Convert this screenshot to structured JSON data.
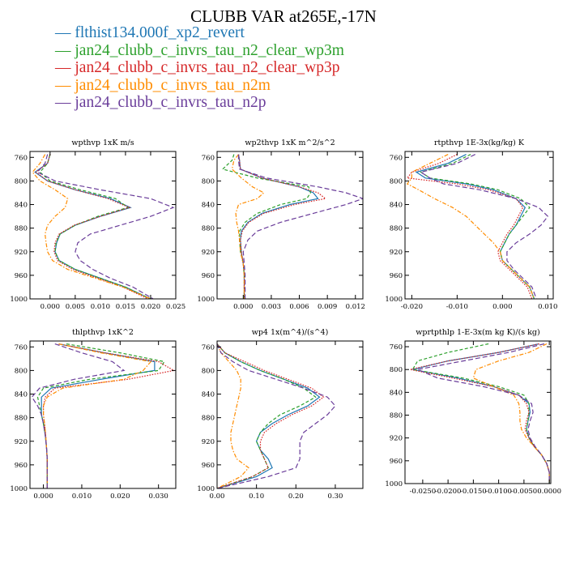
{
  "title": "CLUBB VAR at265E,-17N",
  "legend": [
    {
      "label": "flthist134.000f_xp2_revert",
      "color": "#1f77b4",
      "dash": "solid"
    },
    {
      "label": "jan24_clubb_c_invrs_tau_n2_clear_wp3m",
      "color": "#2ca02c",
      "dash": "dashed"
    },
    {
      "label": "jan24_clubb_c_invrs_tau_n2_clear_wp3p",
      "color": "#d62728",
      "dash": "dotted"
    },
    {
      "label": "jan24_clubb_c_invrs_tau_n2m",
      "color": "#ff8c00",
      "dash": "dashdot"
    },
    {
      "label": "jan24_clubb_c_invrs_tau_n2p",
      "color": "#6a3d9a",
      "dash": "longdash"
    }
  ],
  "chart_data": [
    {
      "type": "line",
      "title": "wpthvp  1xK m/s",
      "xlim": [
        -0.004,
        0.025
      ],
      "ylim": [
        1000,
        750
      ],
      "xticks": [
        0.0,
        0.005,
        0.01,
        0.015,
        0.02,
        0.025
      ],
      "xtick_labels": [
        "0.000",
        "0.005",
        "0.010",
        "0.015",
        "0.020",
        "0.025"
      ],
      "yticks": [
        760,
        800,
        840,
        880,
        920,
        960,
        1000
      ],
      "y": [
        755,
        770,
        785,
        800,
        815,
        830,
        845,
        860,
        875,
        890,
        905,
        920,
        935,
        950,
        965,
        980,
        1000
      ],
      "series": [
        {
          "values": [
            0.0,
            -0.0005,
            -0.003,
            -0.0005,
            0.005,
            0.012,
            0.016,
            0.01,
            0.005,
            0.002,
            0.0013,
            0.001,
            0.0018,
            0.005,
            0.01,
            0.015,
            0.02
          ]
        },
        {
          "values": [
            0.0,
            -0.0005,
            -0.002,
            0.0,
            0.006,
            0.013,
            0.0155,
            0.0095,
            0.005,
            0.002,
            0.0012,
            0.001,
            0.0018,
            0.005,
            0.01,
            0.015,
            0.02
          ]
        },
        {
          "values": [
            0.0,
            -0.0005,
            -0.0028,
            -0.0005,
            0.005,
            0.0115,
            0.0158,
            0.01,
            0.0048,
            0.0018,
            0.001,
            0.0008,
            0.0015,
            0.0045,
            0.0095,
            0.0145,
            0.0195
          ]
        },
        {
          "values": [
            -0.001,
            -0.002,
            -0.0035,
            -0.002,
            0.001,
            0.0035,
            0.003,
            0.001,
            -0.0005,
            -0.001,
            -0.0008,
            -0.0005,
            0.0005,
            0.0035,
            0.009,
            0.0145,
            0.02
          ]
        },
        {
          "values": [
            -0.0005,
            -0.001,
            -0.0025,
            0.001,
            0.01,
            0.02,
            0.0245,
            0.02,
            0.014,
            0.008,
            0.0055,
            0.005,
            0.006,
            0.0085,
            0.012,
            0.0165,
            0.0205
          ]
        }
      ]
    },
    {
      "type": "line",
      "title": "wp2thvp  1xK m^2/s^2",
      "xlim": [
        -0.0028,
        0.0128
      ],
      "ylim": [
        1000,
        750
      ],
      "xticks": [
        0.0,
        0.003,
        0.006,
        0.009,
        0.012
      ],
      "xtick_labels": [
        "0.000",
        "0.003",
        "0.006",
        "0.009",
        "0.012"
      ],
      "yticks": [
        760,
        800,
        840,
        880,
        920,
        960,
        1000
      ],
      "y": [
        755,
        765,
        780,
        795,
        810,
        820,
        830,
        840,
        855,
        870,
        885,
        900,
        920,
        940,
        960,
        980,
        1000
      ],
      "series": [
        {
          "values": [
            -0.0005,
            -0.0004,
            -0.0003,
            0.002,
            0.006,
            0.0075,
            0.008,
            0.005,
            0.002,
            0.0005,
            -0.0002,
            -0.0003,
            -0.0002,
            0.0,
            0.0001,
            0.0001,
            0.0001
          ]
        },
        {
          "values": [
            -0.001,
            -0.0012,
            -0.0022,
            0.0015,
            0.007,
            0.0072,
            0.0068,
            0.004,
            0.0015,
            0.0002,
            -0.0004,
            -0.0004,
            -0.0003,
            0.0,
            0.0001,
            0.0001,
            0.0001
          ]
        },
        {
          "values": [
            -0.0005,
            -0.0004,
            -0.0003,
            0.002,
            0.006,
            0.008,
            0.0088,
            0.0055,
            0.0022,
            0.0006,
            -0.0001,
            -0.0003,
            -0.0002,
            0.0,
            0.0001,
            0.0001,
            0.0001
          ]
        },
        {
          "values": [
            -0.0005,
            -0.001,
            -0.0012,
            -0.0002,
            0.001,
            0.0022,
            0.0015,
            -0.0005,
            -0.0008,
            -0.0007,
            -0.0005,
            -0.0004,
            -0.0003,
            0.0,
            0.0001,
            0.0001,
            0.0001
          ]
        },
        {
          "values": [
            -0.0005,
            -0.0005,
            -0.0004,
            0.0025,
            0.008,
            0.011,
            0.0128,
            0.011,
            0.0075,
            0.004,
            0.0015,
            0.0005,
            0.0,
            0.0001,
            0.0002,
            0.0002,
            0.0002
          ]
        }
      ]
    },
    {
      "type": "line",
      "title": "rtpthvp  1E-3x(kg/kg) K",
      "xlim": [
        -0.0215,
        0.0112
      ],
      "ylim": [
        1000,
        750
      ],
      "xticks": [
        -0.02,
        -0.01,
        0.0,
        0.01
      ],
      "xtick_labels": [
        "-0.020",
        "-0.010",
        "0.000",
        "0.010"
      ],
      "yticks": [
        760,
        800,
        840,
        880,
        920,
        960,
        1000
      ],
      "y": [
        755,
        770,
        785,
        795,
        805,
        815,
        830,
        845,
        860,
        875,
        890,
        905,
        920,
        935,
        950,
        965,
        980,
        1000
      ],
      "series": [
        {
          "values": [
            -0.008,
            -0.012,
            -0.019,
            -0.017,
            -0.008,
            -0.002,
            0.003,
            0.005,
            0.004,
            0.003,
            0.0015,
            0.0005,
            -0.0005,
            0.0,
            0.002,
            0.004,
            0.006,
            0.007
          ]
        },
        {
          "values": [
            -0.007,
            -0.011,
            -0.018,
            -0.016,
            -0.007,
            -0.001,
            0.004,
            0.006,
            0.0045,
            0.003,
            0.0015,
            0.0005,
            -0.0005,
            0.0,
            0.002,
            0.004,
            0.006,
            0.007
          ]
        },
        {
          "values": [
            -0.01,
            -0.014,
            -0.02,
            -0.021,
            -0.01,
            -0.003,
            0.003,
            0.0045,
            0.0035,
            0.0025,
            0.001,
            0.0,
            -0.001,
            -0.0005,
            0.0015,
            0.0035,
            0.0055,
            0.0065
          ]
        },
        {
          "values": [
            -0.012,
            -0.016,
            -0.02,
            -0.02,
            -0.021,
            -0.0185,
            -0.015,
            -0.011,
            -0.008,
            -0.006,
            -0.004,
            -0.002,
            -0.0005,
            0.0,
            0.002,
            0.004,
            0.006,
            0.007
          ]
        },
        {
          "values": [
            -0.006,
            -0.01,
            -0.018,
            -0.016,
            -0.013,
            -0.005,
            0.003,
            0.008,
            0.01,
            0.0085,
            0.006,
            0.003,
            0.001,
            0.001,
            0.0025,
            0.0045,
            0.0065,
            0.0075
          ]
        }
      ]
    },
    {
      "type": "line",
      "title": "thlpthvp  1xK^2",
      "xlim": [
        -0.0035,
        0.0345
      ],
      "ylim": [
        1000,
        750
      ],
      "xticks": [
        0.0,
        0.01,
        0.02,
        0.03
      ],
      "xtick_labels": [
        "0.000",
        "0.010",
        "0.020",
        "0.030"
      ],
      "yticks": [
        760,
        800,
        840,
        880,
        920,
        960,
        1000
      ],
      "y": [
        755,
        770,
        785,
        800,
        815,
        830,
        845,
        860,
        875,
        890,
        910,
        930,
        950,
        970,
        1000
      ],
      "series": [
        {
          "values": [
            0.004,
            0.016,
            0.029,
            0.029,
            0.015,
            0.002,
            -0.0005,
            -0.0005,
            -0.0005,
            0.0,
            0.0005,
            0.0008,
            0.001,
            0.001,
            0.001
          ]
        },
        {
          "values": [
            0.006,
            0.02,
            0.0315,
            0.03,
            0.012,
            0.0,
            -0.0015,
            -0.001,
            -0.0005,
            0.0,
            0.0005,
            0.0008,
            0.001,
            0.001,
            0.001
          ]
        },
        {
          "values": [
            0.004,
            0.016,
            0.03,
            0.034,
            0.022,
            0.003,
            0.0005,
            0.0,
            0.0,
            0.0003,
            0.0006,
            0.0008,
            0.001,
            0.001,
            0.001
          ]
        },
        {
          "values": [
            0.004,
            0.015,
            0.028,
            0.026,
            0.021,
            0.005,
            0.001,
            0.0,
            0.0,
            0.0003,
            0.0006,
            0.0008,
            0.001,
            0.001,
            0.001
          ]
        },
        {
          "values": [
            0.003,
            0.01,
            0.018,
            0.021,
            0.008,
            -0.001,
            -0.003,
            -0.0015,
            -0.0005,
            0.0,
            0.0005,
            0.0008,
            0.001,
            0.001,
            0.001
          ]
        }
      ]
    },
    {
      "type": "line",
      "title": "wp4  1x(m^4)/(s^4)",
      "xlim": [
        0.0,
        0.37
      ],
      "ylim": [
        1000,
        750
      ],
      "xticks": [
        0.0,
        0.1,
        0.2,
        0.3
      ],
      "xtick_labels": [
        "0.00",
        "0.10",
        "0.20",
        "0.30"
      ],
      "yticks": [
        760,
        800,
        840,
        880,
        920,
        960,
        1000
      ],
      "y": [
        755,
        770,
        785,
        800,
        815,
        830,
        845,
        860,
        875,
        890,
        905,
        920,
        935,
        950,
        965,
        980,
        1000
      ],
      "series": [
        {
          "values": [
            0.0,
            0.02,
            0.06,
            0.11,
            0.17,
            0.23,
            0.26,
            0.23,
            0.18,
            0.14,
            0.11,
            0.1,
            0.11,
            0.13,
            0.14,
            0.1,
            0.0
          ]
        },
        {
          "values": [
            0.0,
            0.02,
            0.06,
            0.11,
            0.17,
            0.22,
            0.25,
            0.21,
            0.16,
            0.13,
            0.11,
            0.1,
            0.11,
            0.12,
            0.13,
            0.09,
            0.0
          ]
        },
        {
          "values": [
            0.0,
            0.02,
            0.07,
            0.12,
            0.18,
            0.24,
            0.27,
            0.24,
            0.19,
            0.15,
            0.12,
            0.11,
            0.11,
            0.12,
            0.13,
            0.09,
            0.0
          ]
        },
        {
          "values": [
            0.0,
            0.01,
            0.03,
            0.05,
            0.06,
            0.06,
            0.055,
            0.05,
            0.045,
            0.04,
            0.035,
            0.035,
            0.04,
            0.05,
            0.08,
            0.06,
            0.0
          ]
        },
        {
          "values": [
            0.0,
            0.01,
            0.04,
            0.08,
            0.15,
            0.22,
            0.28,
            0.3,
            0.28,
            0.25,
            0.22,
            0.21,
            0.21,
            0.21,
            0.2,
            0.13,
            0.0
          ]
        }
      ]
    },
    {
      "type": "line",
      "title": "wprtpthlp  1-E-3x(m kg K)/(s kg)",
      "xlim": [
        -0.0285,
        0.0003
      ],
      "ylim": [
        1000,
        750
      ],
      "xticks": [
        -0.025,
        -0.02,
        -0.015,
        -0.01,
        -0.005,
        0.0
      ],
      "xtick_labels": [
        "-0.0250",
        "-0.0200",
        "-0.0150",
        "-0.0100",
        "-0.0050",
        "0.0000"
      ],
      "yticks": [
        760,
        800,
        840,
        880,
        920,
        960,
        1000
      ],
      "y": [
        755,
        770,
        785,
        800,
        815,
        830,
        845,
        860,
        875,
        890,
        905,
        920,
        935,
        950,
        965,
        980,
        1000
      ],
      "series": [
        {
          "values": [
            -0.002,
            -0.01,
            -0.02,
            -0.027,
            -0.018,
            -0.011,
            -0.006,
            -0.004,
            -0.0038,
            -0.0042,
            -0.0045,
            -0.004,
            -0.003,
            -0.0015,
            -0.0005,
            0.0,
            0.0
          ]
        },
        {
          "values": [
            -0.012,
            -0.02,
            -0.026,
            -0.027,
            -0.017,
            -0.01,
            -0.005,
            -0.004,
            -0.004,
            -0.0042,
            -0.0045,
            -0.004,
            -0.003,
            -0.0015,
            -0.0005,
            0.0,
            0.0
          ]
        },
        {
          "values": [
            -0.002,
            -0.01,
            -0.02,
            -0.0275,
            -0.019,
            -0.011,
            -0.006,
            -0.0045,
            -0.004,
            -0.0045,
            -0.0048,
            -0.004,
            -0.003,
            -0.0015,
            -0.0005,
            0.0,
            0.0
          ]
        },
        {
          "values": [
            -0.0005,
            -0.004,
            -0.01,
            -0.0145,
            -0.015,
            -0.011,
            -0.007,
            -0.006,
            -0.0058,
            -0.0058,
            -0.0055,
            -0.0045,
            -0.003,
            -0.0015,
            -0.0005,
            0.0,
            0.0
          ]
        },
        {
          "values": [
            -0.001,
            -0.008,
            -0.017,
            -0.026,
            -0.022,
            -0.013,
            -0.006,
            -0.0035,
            -0.0032,
            -0.0038,
            -0.0042,
            -0.0038,
            -0.0028,
            -0.0015,
            -0.0005,
            0.0,
            0.0
          ]
        }
      ]
    }
  ]
}
